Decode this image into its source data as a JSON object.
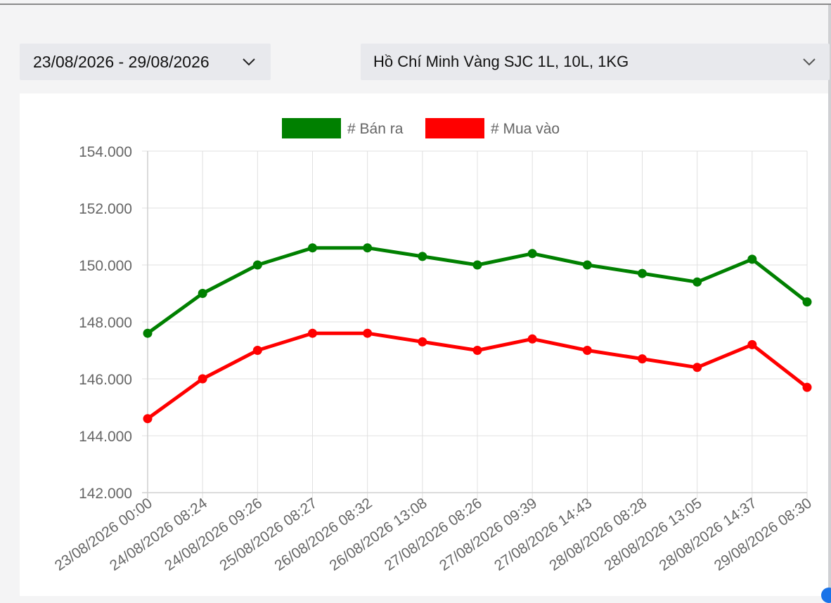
{
  "filters": {
    "date_range": "23/08/2026 - 29/08/2026",
    "product": "Hồ Chí Minh Vàng SJC 1L, 10L, 1KG"
  },
  "icons": {
    "dropdown": "chevron-down-icon"
  },
  "chart_data": {
    "type": "line",
    "x": [
      "23/08/2026 00:00",
      "24/08/2026 08:24",
      "24/08/2026 09:26",
      "25/08/2026 08:27",
      "26/08/2026 08:32",
      "26/08/2026 13:08",
      "27/08/2026 08:26",
      "27/08/2026 09:39",
      "27/08/2026 14:43",
      "28/08/2026 08:28",
      "28/08/2026 13:05",
      "28/08/2026 14:37",
      "29/08/2026 08:30"
    ],
    "series": [
      {
        "name": "# Bán ra",
        "color": "#008000",
        "values": [
          147.6,
          149.0,
          150.0,
          150.6,
          150.6,
          150.3,
          150.0,
          150.4,
          150.0,
          149.7,
          149.4,
          150.2,
          148.7
        ]
      },
      {
        "name": "# Mua vào",
        "color": "#ff0000",
        "values": [
          144.6,
          146.0,
          147.0,
          147.6,
          147.6,
          147.3,
          147.0,
          147.4,
          147.0,
          146.7,
          146.4,
          147.2,
          145.7
        ]
      }
    ],
    "yticks": [
      "154.000",
      "152.000",
      "150.000",
      "148.000",
      "146.000",
      "144.000",
      "142.000"
    ],
    "ylim": [
      142,
      154
    ],
    "grid": true,
    "legend": "top-center"
  }
}
